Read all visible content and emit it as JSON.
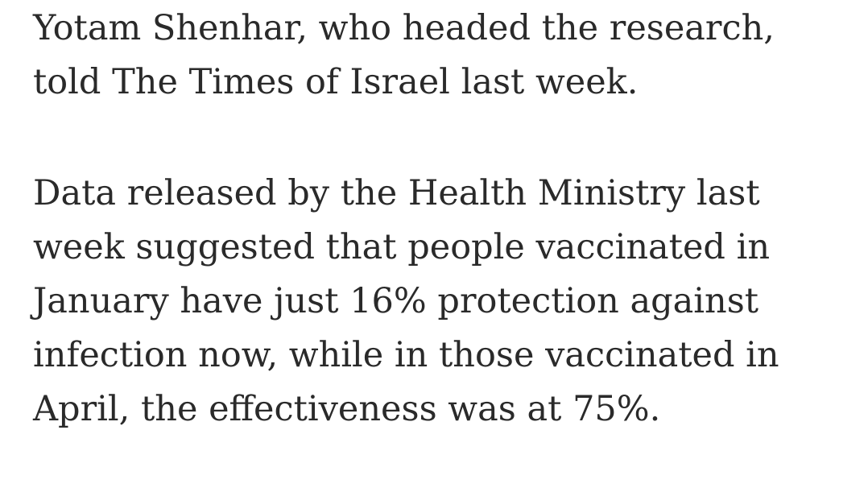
{
  "article": {
    "paragraphs": [
      {
        "lines": [
          "Yotam Shenhar, who headed the research,",
          "told The Times of Israel last week."
        ]
      },
      {
        "lines": [
          "Data released by the Health Ministry last",
          "week suggested that people vaccinated in",
          "January have just 16% protection against",
          "infection now, while in those vaccinated in",
          "April, the effectiveness was at 75%."
        ]
      }
    ]
  }
}
